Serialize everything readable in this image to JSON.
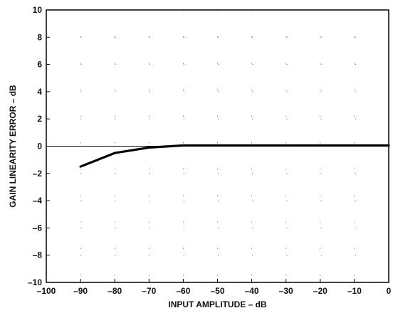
{
  "chart_data": {
    "type": "line",
    "title": "",
    "xlabel": "INPUT AMPLITUDE – dB",
    "ylabel": "GAIN LINEARITY ERROR – dB",
    "xlim": [
      -100,
      0
    ],
    "ylim": [
      -10,
      10
    ],
    "x_ticks": [
      -100,
      -90,
      -80,
      -70,
      -60,
      -50,
      -40,
      -30,
      -20,
      -10,
      0
    ],
    "y_ticks": [
      -10,
      -8,
      -6,
      -4,
      -2,
      0,
      2,
      4,
      6,
      8,
      10
    ],
    "x_tick_labels": [
      "–100",
      "–90",
      "–80",
      "–70",
      "–60",
      "–50",
      "–40",
      "–30",
      "–20",
      "–10",
      "0"
    ],
    "y_tick_labels": [
      "–10",
      "–8",
      "–6",
      "–4",
      "–2",
      "0",
      "2",
      "4",
      "6",
      "8",
      "10"
    ],
    "grid": "dotted",
    "series": [
      {
        "x": [
          -90,
          -80,
          -70,
          -60,
          -50,
          -40,
          -30,
          -20,
          -10,
          0
        ],
        "y": [
          -1.5,
          -0.5,
          -0.1,
          0.05,
          0.05,
          0.05,
          0.05,
          0.05,
          0.05,
          0.05
        ],
        "color": "#000000"
      }
    ]
  }
}
